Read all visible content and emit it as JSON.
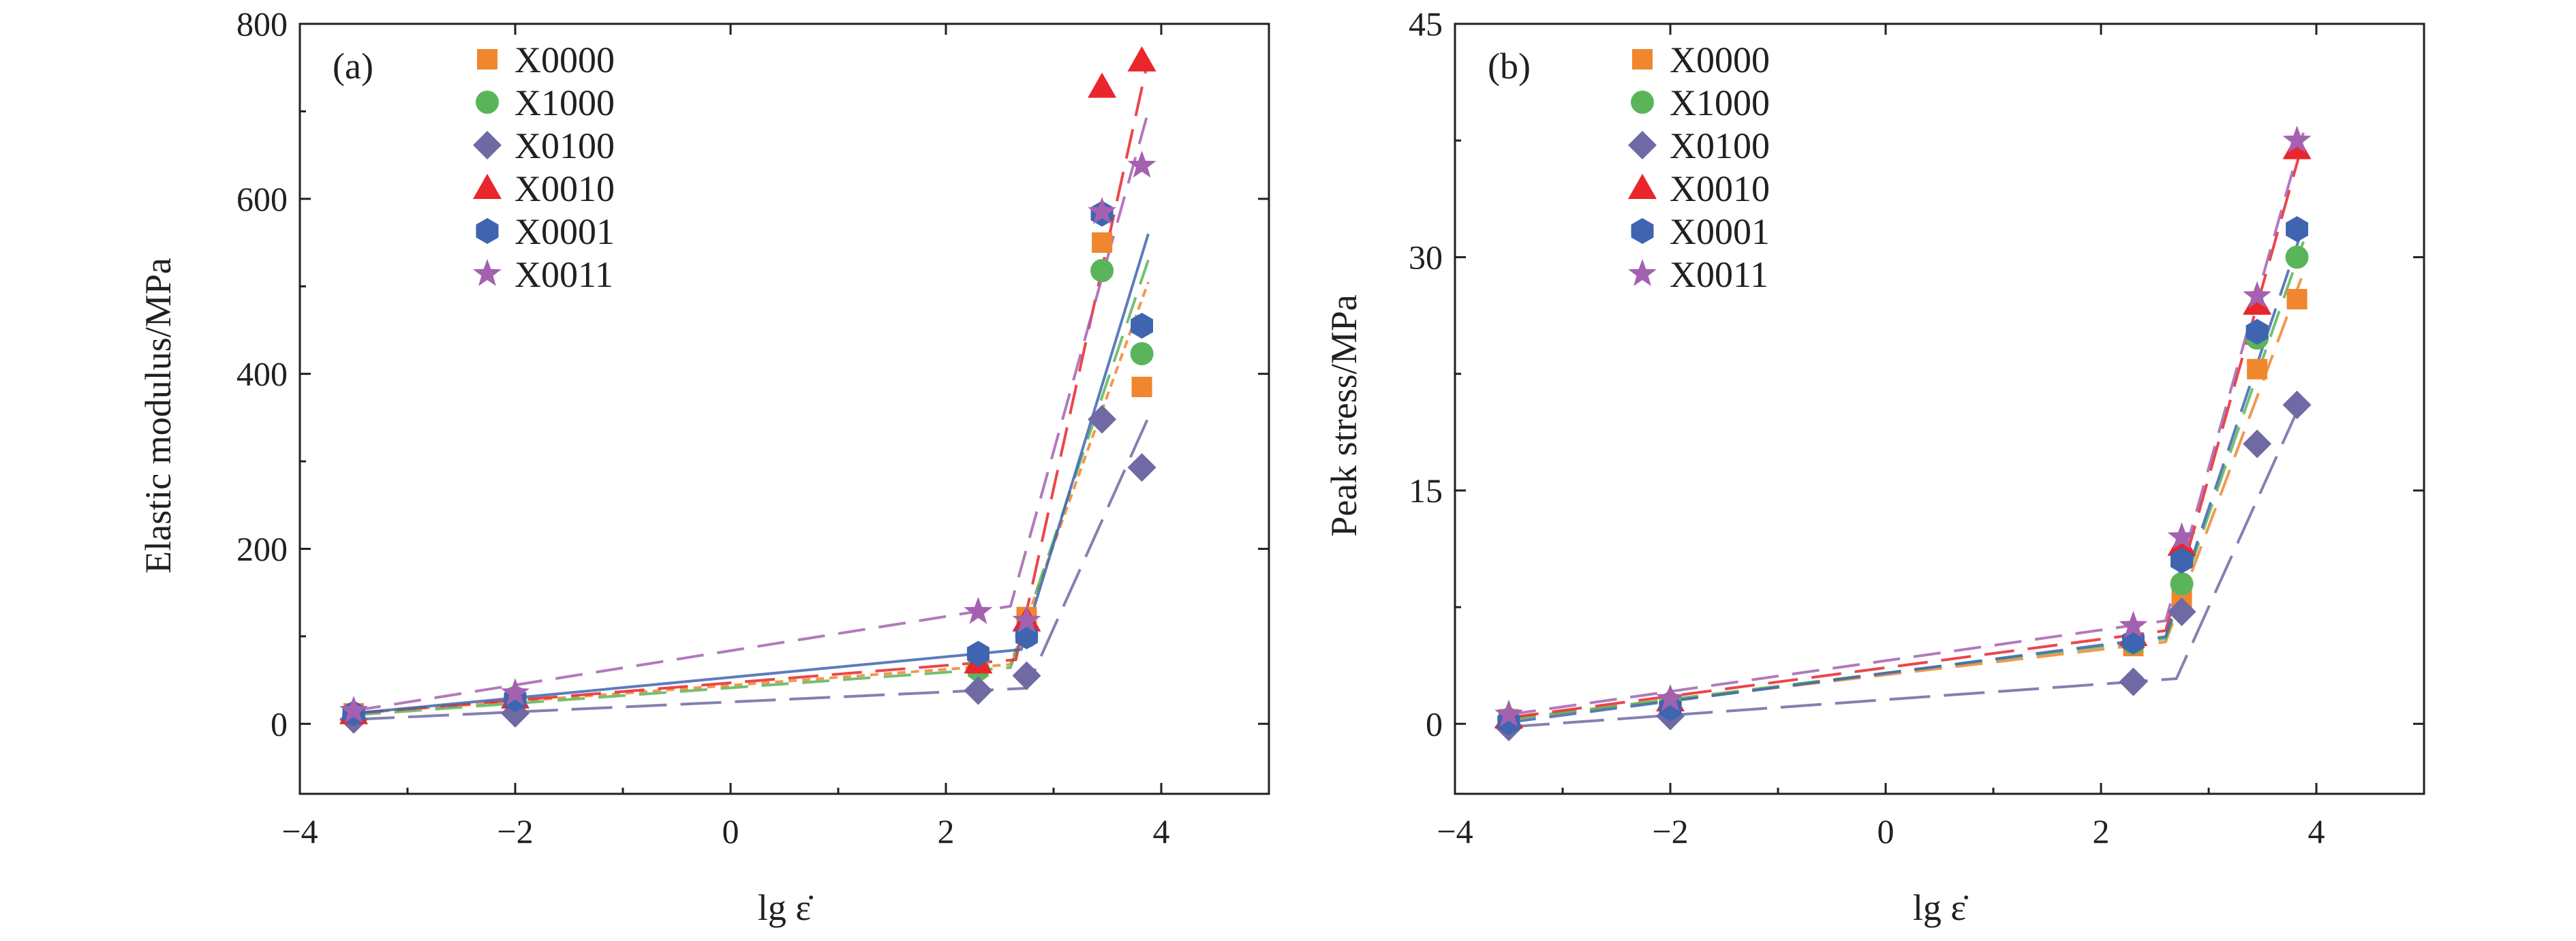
{
  "chart_data": [
    {
      "type": "scatter",
      "panel_label": "(a)",
      "xlabel": "lg ε̇",
      "ylabel": "Elastic modulus/MPa",
      "xlim": [
        -4,
        5
      ],
      "ylim": [
        -80,
        800
      ],
      "xticks": [
        -4,
        -2,
        0,
        2,
        4
      ],
      "yticks": [
        0,
        200,
        400,
        600,
        800
      ],
      "xtick_labels": [
        "−4",
        "−2",
        "0",
        "2",
        "4"
      ],
      "ytick_labels": [
        "0",
        "200",
        "400",
        "600",
        "800"
      ],
      "legend_position": "top-left",
      "grid": false,
      "x": [
        -3.5,
        -2.0,
        2.3,
        2.75,
        3.45,
        3.82
      ],
      "series": [
        {
          "name": "X0000",
          "color": "#f0862e",
          "marker": "square",
          "values": [
            12,
            25,
            65,
            122,
            550,
            385
          ],
          "fit": {
            "knee_x": 2.6,
            "end_y": 505,
            "dash": "6 4"
          }
        },
        {
          "name": "X1000",
          "color": "#5ab55a",
          "marker": "circle",
          "values": [
            10,
            30,
            62,
            100,
            518,
            423
          ],
          "fit": {
            "knee_x": 2.6,
            "end_y": 530,
            "dash": "20 10"
          }
        },
        {
          "name": "X0100",
          "color": "#6f6aa3",
          "marker": "diamond",
          "values": [
            5,
            12,
            38,
            55,
            348,
            293
          ],
          "fit": {
            "knee_x": 2.75,
            "end_y": 350,
            "dash": "30 10"
          }
        },
        {
          "name": "X0010",
          "color": "#e8262b",
          "marker": "triangle",
          "values": [
            12,
            30,
            70,
            118,
            728,
            758
          ],
          "fit": {
            "knee_x": 2.65,
            "end_y": 760,
            "dash": "22 10"
          }
        },
        {
          "name": "X0001",
          "color": "#3f65b1",
          "marker": "hexagon",
          "values": [
            12,
            28,
            80,
            100,
            583,
            455
          ],
          "fit": {
            "knee_x": 2.7,
            "end_y": 560,
            "dash": "none"
          }
        },
        {
          "name": "X0011",
          "color": "#a461b0",
          "marker": "star",
          "values": [
            15,
            35,
            128,
            118,
            585,
            638
          ],
          "fit": {
            "knee_x": 2.6,
            "end_y": 700,
            "dash": "20 10"
          }
        }
      ]
    },
    {
      "type": "scatter",
      "panel_label": "(b)",
      "xlabel": "lg ε̇",
      "ylabel": "Peak stress/MPa",
      "xlim": [
        -4,
        5
      ],
      "ylim": [
        -4.5,
        45
      ],
      "xticks": [
        -4,
        -2,
        0,
        2,
        4
      ],
      "yticks": [
        0,
        15,
        30,
        45
      ],
      "xtick_labels": [
        "−4",
        "−2",
        "0",
        "2",
        "4"
      ],
      "ytick_labels": [
        "0",
        "15",
        "30",
        "45"
      ],
      "legend_position": "top-left",
      "grid": false,
      "x": [
        -3.5,
        -2.0,
        2.3,
        2.75,
        3.45,
        3.82
      ],
      "series": [
        {
          "name": "X0000",
          "color": "#f0862e",
          "marker": "square",
          "values": [
            0.3,
            1.2,
            5.0,
            8.0,
            22.8,
            27.3
          ],
          "fit": {
            "knee_x": 2.6,
            "end_y": 29,
            "dash": "20 10"
          }
        },
        {
          "name": "X1000",
          "color": "#5ab55a",
          "marker": "circle",
          "values": [
            0.3,
            1.3,
            5.2,
            9.0,
            24.8,
            30.0
          ],
          "fit": {
            "knee_x": 2.6,
            "end_y": 31,
            "dash": "20 10"
          }
        },
        {
          "name": "X0100",
          "color": "#6f6aa3",
          "marker": "diamond",
          "values": [
            -0.2,
            0.5,
            2.7,
            7.2,
            18.0,
            20.5
          ],
          "fit": {
            "knee_x": 2.7,
            "end_y": 21,
            "dash": "30 10"
          }
        },
        {
          "name": "X0010",
          "color": "#e8262b",
          "marker": "triangle",
          "values": [
            0.4,
            1.5,
            5.7,
            11.5,
            27.0,
            37.0
          ],
          "fit": {
            "knee_x": 2.6,
            "end_y": 37.5,
            "dash": "22 10"
          }
        },
        {
          "name": "X0001",
          "color": "#3f65b1",
          "marker": "hexagon",
          "values": [
            0.1,
            1.0,
            5.3,
            10.5,
            25.2,
            31.8
          ],
          "fit": {
            "knee_x": 2.6,
            "end_y": 32,
            "dash": "20 10"
          }
        },
        {
          "name": "X0011",
          "color": "#a461b0",
          "marker": "star",
          "values": [
            0.6,
            1.6,
            6.3,
            12.0,
            27.5,
            37.5
          ],
          "fit": {
            "knee_x": 2.6,
            "end_y": 38,
            "dash": "20 10"
          }
        }
      ]
    }
  ]
}
